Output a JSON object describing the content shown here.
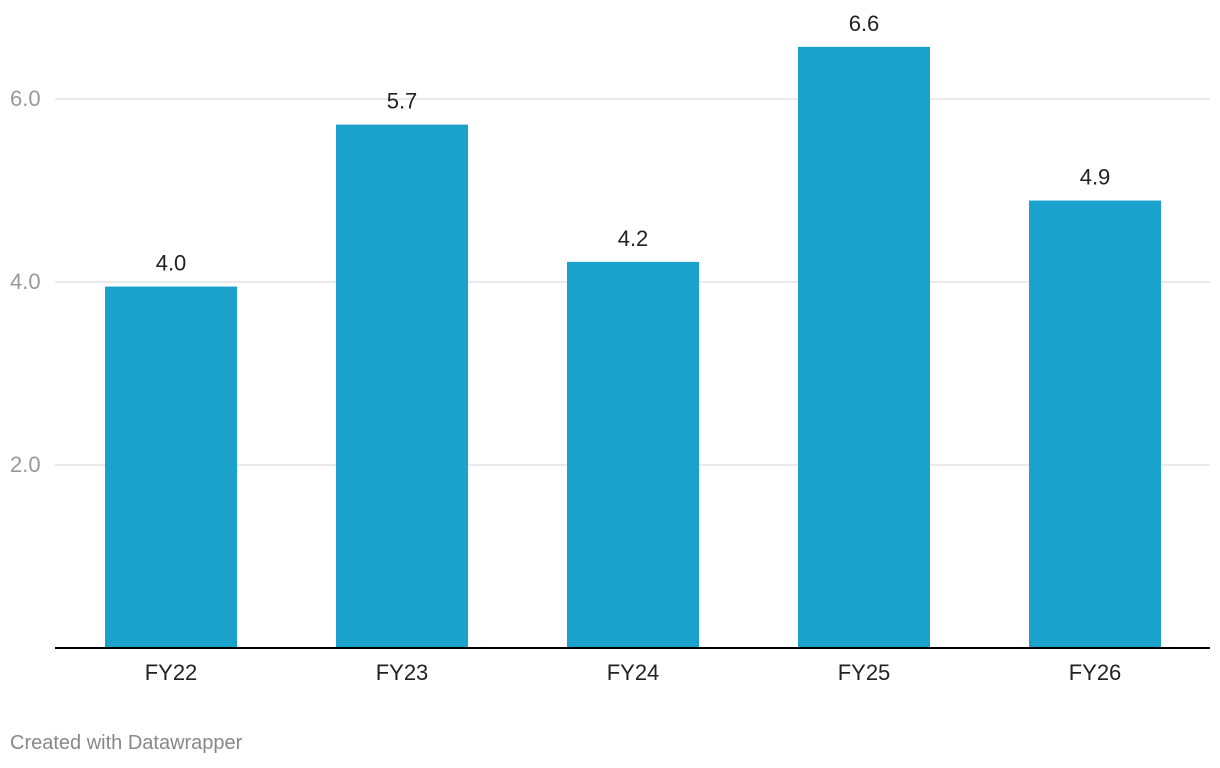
{
  "chart_data": {
    "type": "bar",
    "categories": [
      "FY22",
      "FY23",
      "FY24",
      "FY25",
      "FY26"
    ],
    "values": [
      3.95,
      5.72,
      4.22,
      6.57,
      4.89
    ],
    "data_labels": [
      "4.0",
      "5.7",
      "4.2",
      "6.6",
      "4.9"
    ],
    "title": "",
    "xlabel": "",
    "ylabel": "",
    "ylim": [
      0,
      7
    ],
    "yticks": [
      2.0,
      4.0,
      6.0
    ],
    "ytick_labels": [
      "2.0",
      "4.0",
      "6.0"
    ],
    "grid": true,
    "bar_color": "#1aa1cc",
    "grid_color": "#e4e4e4",
    "axis_color": "#000000",
    "tick_label_color": "#999999",
    "text_color": "#222222"
  },
  "footer": {
    "credit": "Created with Datawrapper"
  }
}
